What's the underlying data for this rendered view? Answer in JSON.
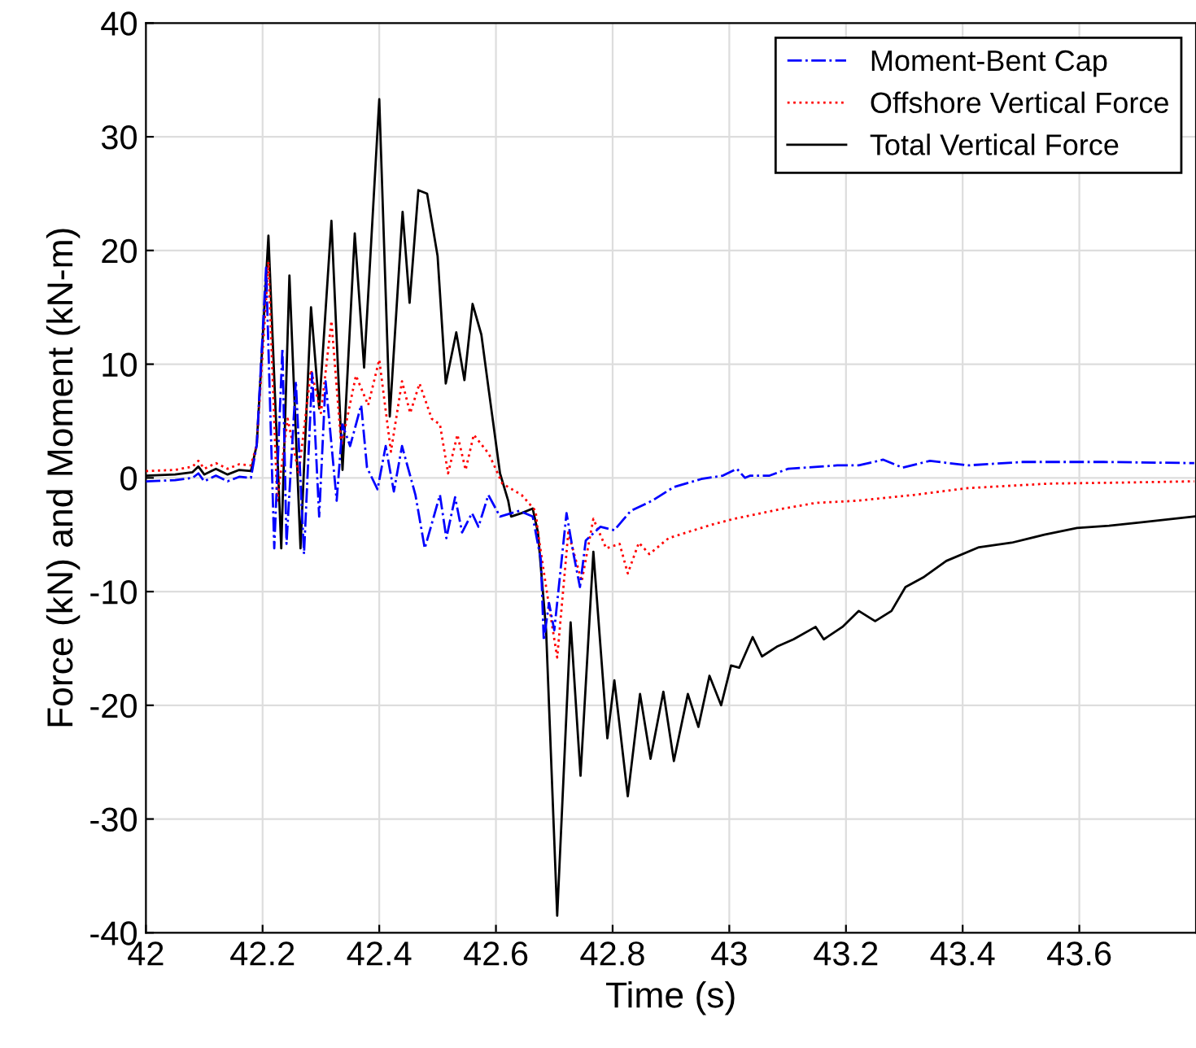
{
  "chart_data": {
    "type": "line",
    "xlabel": "Time (s)",
    "ylabel": "Force (kN) and Moment (kN-m)",
    "xlim": [
      42,
      43.8
    ],
    "xticks": [
      42,
      42.2,
      42.4,
      42.6,
      42.8,
      43,
      43.2,
      43.4,
      43.6
    ],
    "ylim": [
      -40,
      40
    ],
    "yticks": [
      -40,
      -30,
      -20,
      -10,
      0,
      10,
      20,
      30,
      40
    ],
    "grid": true,
    "legend": "top right",
    "series": [
      {
        "name": "Moment-Bent Cap",
        "color": "#0000ff",
        "line_style": "dashdot",
        "x": [
          42.0,
          42.05,
          42.08,
          42.09,
          42.1,
          42.12,
          42.14,
          42.16,
          42.18,
          42.19,
          42.206,
          42.22,
          42.234,
          42.241,
          42.257,
          42.271,
          42.285,
          42.297,
          42.308,
          42.327,
          42.337,
          42.35,
          42.369,
          42.379,
          42.397,
          42.411,
          42.425,
          42.439,
          42.462,
          42.478,
          42.504,
          42.515,
          42.53,
          42.542,
          42.559,
          42.57,
          42.587,
          42.607,
          42.64,
          42.663,
          42.677,
          42.682,
          42.691,
          42.7,
          42.721,
          42.733,
          42.744,
          42.754,
          42.779,
          42.803,
          42.831,
          42.868,
          42.905,
          42.952,
          42.989,
          43.013,
          43.027,
          43.036,
          43.069,
          43.101,
          43.157,
          43.185,
          43.222,
          43.264,
          43.297,
          43.344,
          43.409,
          43.502,
          43.642,
          43.797
        ],
        "values": [
          -0.3,
          -0.2,
          0.0,
          0.4,
          -0.3,
          0.2,
          -0.3,
          0.1,
          0.0,
          2.9,
          18.5,
          -6.2,
          11.4,
          -5.8,
          8.5,
          -6.7,
          9.2,
          -3.4,
          8.5,
          -2.0,
          4.7,
          2.8,
          6.4,
          0.9,
          -1.0,
          2.8,
          -1.2,
          2.8,
          -1.5,
          -6.2,
          -1.5,
          -5.3,
          -1.7,
          -4.8,
          -3.1,
          -4.3,
          -1.5,
          -3.4,
          -2.9,
          -3.4,
          -7.2,
          -14.3,
          -11.0,
          -13.4,
          -3.1,
          -6.7,
          -9.6,
          -5.5,
          -4.3,
          -4.6,
          -2.9,
          -2.0,
          -0.8,
          -0.1,
          0.2,
          0.8,
          0.0,
          0.2,
          0.2,
          0.8,
          1.0,
          1.1,
          1.1,
          1.6,
          0.9,
          1.5,
          1.1,
          1.4,
          1.4,
          1.3
        ]
      },
      {
        "name": "Offshore Vertical Force",
        "color": "#ff0000",
        "line_style": "dotted",
        "x": [
          42.0,
          42.05,
          42.08,
          42.09,
          42.1,
          42.12,
          42.14,
          42.16,
          42.18,
          42.19,
          42.21,
          42.225,
          42.243,
          42.262,
          42.283,
          42.3,
          42.318,
          42.335,
          42.36,
          42.381,
          42.4,
          42.42,
          42.439,
          42.453,
          42.469,
          42.49,
          42.504,
          42.518,
          42.534,
          42.548,
          42.562,
          42.588,
          42.611,
          42.644,
          42.668,
          42.672,
          42.686,
          42.705,
          42.724,
          42.747,
          42.767,
          42.789,
          42.812,
          42.826,
          42.845,
          42.863,
          42.896,
          42.933,
          42.971,
          43.008,
          43.092,
          43.148,
          43.222,
          43.316,
          43.409,
          43.549,
          43.688,
          43.797
        ],
        "values": [
          0.6,
          0.7,
          1.0,
          1.5,
          0.8,
          1.3,
          0.8,
          1.2,
          1.1,
          2.9,
          19.0,
          -2.0,
          5.2,
          0.4,
          9.5,
          5.7,
          13.8,
          2.8,
          9.0,
          6.4,
          10.4,
          2.3,
          8.5,
          5.7,
          8.3,
          5.2,
          4.7,
          0.4,
          3.8,
          0.7,
          3.8,
          2.1,
          -0.5,
          -1.5,
          -2.9,
          -4.8,
          -9.6,
          -15.8,
          -4.8,
          -9.1,
          -3.6,
          -6.2,
          -5.8,
          -8.4,
          -5.7,
          -6.7,
          -5.3,
          -4.7,
          -4.1,
          -3.6,
          -2.7,
          -2.2,
          -2.0,
          -1.5,
          -0.9,
          -0.5,
          -0.4,
          -0.3
        ]
      },
      {
        "name": "Total Vertical Force",
        "color": "#000000",
        "line_style": "solid",
        "x": [
          42.0,
          42.05,
          42.08,
          42.09,
          42.1,
          42.12,
          42.14,
          42.16,
          42.18,
          42.19,
          42.21,
          42.232,
          42.246,
          42.265,
          42.283,
          42.297,
          42.318,
          42.337,
          42.358,
          42.374,
          42.4,
          42.418,
          42.44,
          42.452,
          42.467,
          42.482,
          42.5,
          42.514,
          42.532,
          42.546,
          42.56,
          42.575,
          42.588,
          42.607,
          42.621,
          42.626,
          42.644,
          42.663,
          42.672,
          42.686,
          42.705,
          42.728,
          42.745,
          42.767,
          42.791,
          42.803,
          42.826,
          42.847,
          42.865,
          42.887,
          42.905,
          42.929,
          42.947,
          42.966,
          42.986,
          43.003,
          43.017,
          43.04,
          43.056,
          43.083,
          43.11,
          43.148,
          43.162,
          43.194,
          43.222,
          43.25,
          43.278,
          43.302,
          43.334,
          43.372,
          43.428,
          43.484,
          43.54,
          43.596,
          43.651,
          43.707,
          43.797
        ],
        "values": [
          0.2,
          0.3,
          0.5,
          1.0,
          0.3,
          0.8,
          0.3,
          0.7,
          0.6,
          2.9,
          21.3,
          -6.2,
          17.8,
          -6.2,
          15.0,
          6.1,
          22.6,
          0.7,
          21.5,
          9.7,
          33.3,
          5.4,
          23.4,
          15.4,
          25.3,
          25.0,
          19.5,
          8.3,
          12.8,
          8.6,
          15.3,
          12.6,
          7.6,
          0.4,
          -2.0,
          -3.4,
          -3.1,
          -2.7,
          -4.8,
          -13.4,
          -38.5,
          -12.7,
          -26.2,
          -6.5,
          -22.9,
          -17.8,
          -28.0,
          -19.0,
          -24.7,
          -18.8,
          -24.9,
          -19.0,
          -21.9,
          -17.4,
          -20.0,
          -16.5,
          -16.7,
          -14.0,
          -15.7,
          -14.8,
          -14.2,
          -13.1,
          -14.2,
          -13.1,
          -11.7,
          -12.6,
          -11.7,
          -9.6,
          -8.7,
          -7.3,
          -6.1,
          -5.7,
          -5.0,
          -4.4,
          -4.2,
          -3.9,
          -3.4
        ]
      }
    ]
  }
}
